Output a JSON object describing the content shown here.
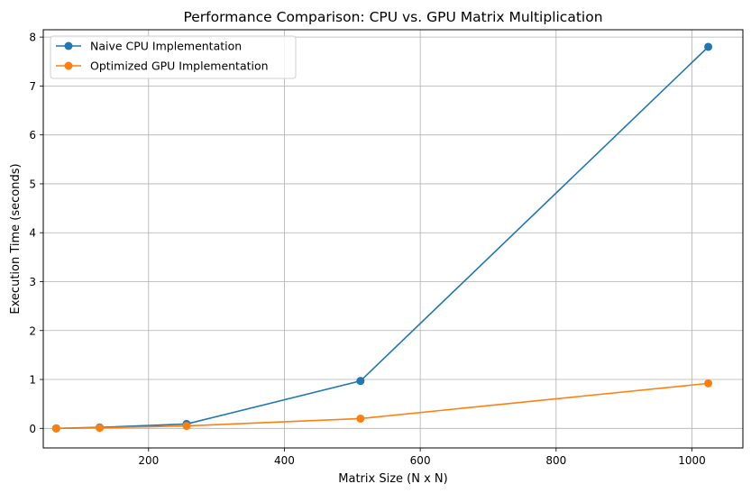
{
  "chart_data": {
    "type": "line",
    "title": "Performance Comparison: CPU vs. GPU Matrix Multiplication",
    "xlabel": "Matrix Size (N x N)",
    "ylabel": "Execution Time (seconds)",
    "xlim": [
      45,
      1075
    ],
    "ylim": [
      -0.4,
      8.15
    ],
    "xticks": [
      200,
      400,
      600,
      800,
      1000
    ],
    "yticks": [
      0,
      1,
      2,
      3,
      4,
      5,
      6,
      7,
      8
    ],
    "grid": true,
    "legend_position": "top-left",
    "x": [
      64,
      128,
      256,
      512,
      1024
    ],
    "series": [
      {
        "name": "Naive CPU Implementation",
        "color": "#1f77b4",
        "values": [
          0.0,
          0.02,
          0.09,
          0.97,
          7.8
        ]
      },
      {
        "name": "Optimized GPU Implementation",
        "color": "#ff7f0e",
        "values": [
          0.0,
          0.01,
          0.05,
          0.2,
          0.92
        ]
      }
    ]
  }
}
